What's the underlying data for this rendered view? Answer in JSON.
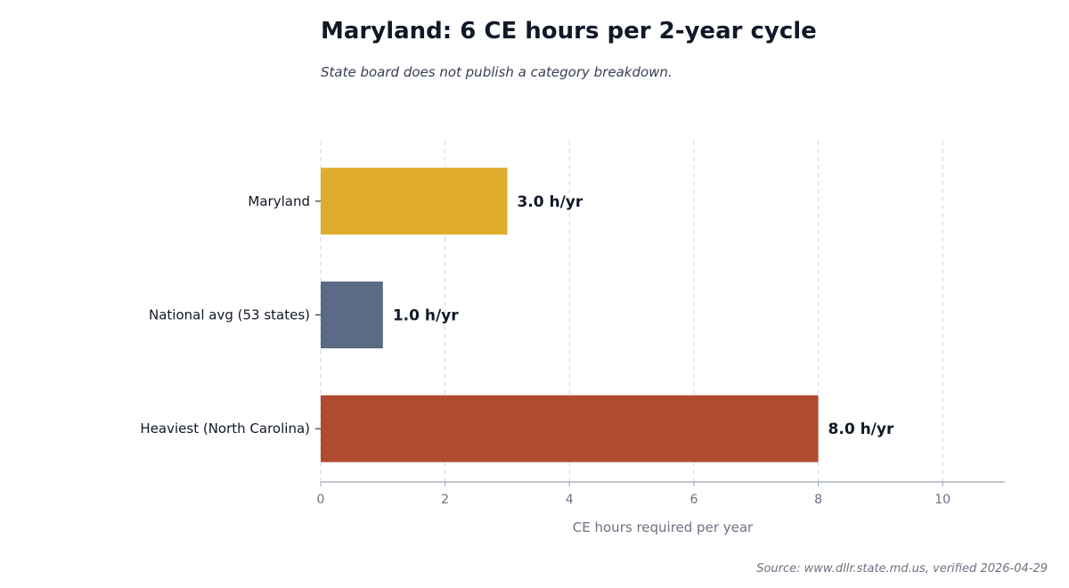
{
  "title": "Maryland: 6 CE hours per 2-year cycle",
  "subtitle": "State board does not publish a category breakdown.",
  "source": "Source: www.dllr.state.md.us, verified 2026-04-29",
  "colors": {
    "maryland": "#dfac2c",
    "national": "#5b6a85",
    "heaviest": "#b04b2f",
    "text": "#111827",
    "axis": "#9aa5b1",
    "grid": "#d1d5db",
    "tick": "#6b7280"
  },
  "chart_data": {
    "type": "bar",
    "orientation": "horizontal",
    "categories": [
      "Maryland",
      "National avg (53 states)",
      "Heaviest (North Carolina)"
    ],
    "values": [
      3.0,
      1.0,
      8.0
    ],
    "value_labels": [
      "3.0 h/yr",
      "1.0 h/yr",
      "8.0 h/yr"
    ],
    "bar_colors": [
      "#dfac2c",
      "#5b6a85",
      "#b04b2f"
    ],
    "xlabel": "CE hours required per year",
    "xlim": [
      0,
      11
    ],
    "xticks": [
      0,
      2,
      4,
      6,
      8,
      10
    ],
    "grid": "vertical dashed"
  }
}
